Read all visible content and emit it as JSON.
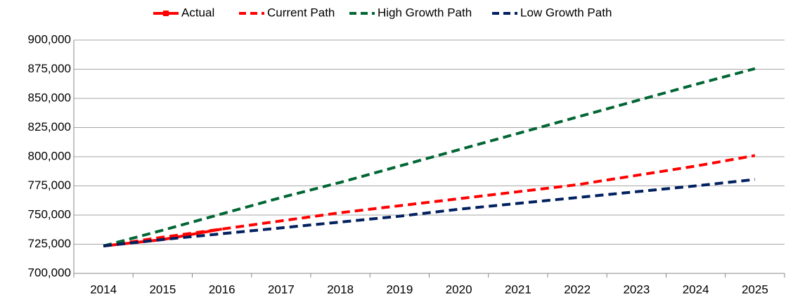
{
  "chart_data": {
    "type": "line",
    "categories": [
      "2014",
      "2015",
      "2016",
      "2017",
      "2018",
      "2019",
      "2020",
      "2021",
      "2022",
      "2023",
      "2024",
      "2025"
    ],
    "series": [
      {
        "name": "Actual",
        "color": "#ff0000",
        "dash": false,
        "values": [
          723500,
          729000,
          738000,
          null,
          null,
          null,
          null,
          null,
          null,
          null,
          null,
          null
        ]
      },
      {
        "name": "Current Path",
        "color": "#ff0000",
        "dash": true,
        "values": [
          723500,
          731000,
          738000,
          745000,
          752000,
          758000,
          764000,
          770000,
          776000,
          784000,
          792000,
          801000
        ]
      },
      {
        "name": "High Growth Path",
        "color": "#006633",
        "dash": true,
        "values": [
          723500,
          737000,
          751000,
          765000,
          778000,
          792000,
          806000,
          820000,
          834000,
          848000,
          862000,
          875500
        ]
      },
      {
        "name": "Low Growth Path",
        "color": "#002060",
        "dash": true,
        "values": [
          723500,
          729000,
          734000,
          739000,
          744000,
          749000,
          755000,
          760000,
          765000,
          770000,
          775000,
          780500
        ]
      }
    ],
    "ylim": [
      700000,
      900000
    ],
    "yticks": [
      {
        "value": 700000,
        "label": "700,000"
      },
      {
        "value": 725000,
        "label": "725,000"
      },
      {
        "value": 750000,
        "label": "750,000"
      },
      {
        "value": 775000,
        "label": "775,000"
      },
      {
        "value": 800000,
        "label": "800,000"
      },
      {
        "value": 825000,
        "label": "825,000"
      },
      {
        "value": 850000,
        "label": "850,000"
      },
      {
        "value": 875000,
        "label": "875,000"
      },
      {
        "value": 900000,
        "label": "900,000"
      }
    ],
    "grid": true,
    "legend": "top"
  }
}
